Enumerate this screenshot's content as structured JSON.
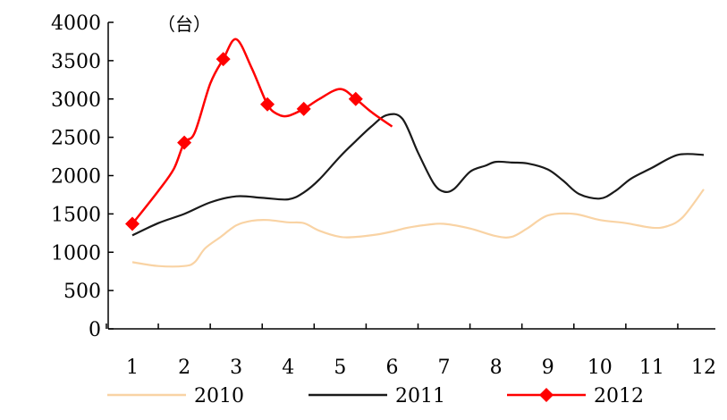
{
  "chart_data": {
    "type": "line",
    "title": "",
    "xlabel": "",
    "ylabel": "",
    "unit_label": "（台）",
    "categories": [
      "1",
      "2",
      "3",
      "4",
      "5",
      "6",
      "7",
      "8",
      "9",
      "10",
      "11",
      "12"
    ],
    "ylim": [
      0,
      4000
    ],
    "yticks": [
      0,
      500,
      1000,
      1500,
      2000,
      2500,
      3000,
      3500,
      4000
    ],
    "grid": false,
    "legend_placement": "bottom",
    "series": [
      {
        "name": "2010",
        "color": "#f9d3a4",
        "marker": "none",
        "x": [
          1,
          1.5,
          2,
          2.2,
          2.4,
          2.7,
          3,
          3.3,
          3.6,
          4,
          4.3,
          4.6,
          5,
          5.3,
          5.7,
          6,
          6.3,
          6.7,
          7,
          7.5,
          8,
          8.3,
          8.6,
          9,
          9.5,
          10,
          10.5,
          11,
          11.3,
          11.6,
          12
        ],
        "values": [
          870,
          820,
          820,
          870,
          1050,
          1200,
          1350,
          1410,
          1420,
          1390,
          1380,
          1280,
          1200,
          1200,
          1230,
          1270,
          1320,
          1360,
          1370,
          1310,
          1210,
          1200,
          1310,
          1480,
          1500,
          1420,
          1380,
          1320,
          1340,
          1460,
          1820
        ]
      },
      {
        "name": "2011",
        "color": "#1a1a1a",
        "marker": "none",
        "x": [
          1,
          1.5,
          2,
          2.5,
          3,
          3.5,
          4,
          4.3,
          4.6,
          5,
          5.3,
          5.6,
          5.9,
          6.2,
          6.5,
          6.8,
          7,
          7.2,
          7.5,
          7.8,
          8,
          8.3,
          8.6,
          9,
          9.3,
          9.6,
          10,
          10.3,
          10.6,
          11,
          11.5,
          12
        ],
        "values": [
          1220,
          1380,
          1500,
          1650,
          1730,
          1710,
          1690,
          1780,
          1950,
          2250,
          2450,
          2640,
          2790,
          2740,
          2300,
          1900,
          1790,
          1830,
          2050,
          2130,
          2180,
          2170,
          2160,
          2080,
          1930,
          1760,
          1700,
          1800,
          1960,
          2100,
          2270,
          2270
        ]
      },
      {
        "name": "2012",
        "color": "#ff0000",
        "marker": "diamond",
        "marker_indices": [
          0,
          3,
          6,
          9,
          12,
          15
        ],
        "x": [
          1,
          1.5,
          1.8,
          2,
          2.2,
          2.5,
          2.75,
          3,
          3.3,
          3.6,
          3.8,
          4,
          4.3,
          4.6,
          5,
          5.3,
          5.6,
          6
        ],
        "values": [
          1370,
          1800,
          2090,
          2430,
          2560,
          3200,
          3520,
          3780,
          3400,
          2930,
          2800,
          2780,
          2870,
          3000,
          3130,
          3000,
          2830,
          2640
        ]
      }
    ]
  }
}
